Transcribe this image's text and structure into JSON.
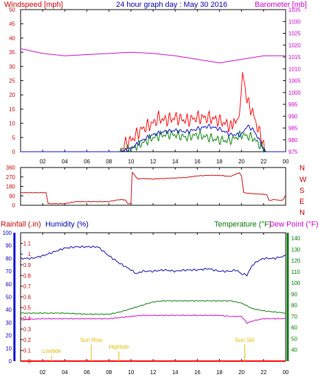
{
  "header": {
    "left_label": "Windspeed [mph]",
    "center_title": "24 hour graph day : May 30 2016",
    "right_label": "Barometer [mb]"
  },
  "legend2": {
    "rainfall_label": "Rainfall (.in)",
    "humidity_label": "Humidity (%)",
    "temperature_label": "Temperature (°F)",
    "dewpoint_label": "Dew Point (°F)"
  },
  "colors": {
    "wind": "#ff0000",
    "wind_avg": "#008000",
    "wind_blue": "#0000cc",
    "barometer": "#cc00cc",
    "direction": "#cc0000",
    "humidity": "#0000aa",
    "temperature": "#007700",
    "dewpoint": "#cc00cc",
    "rainfall": "#ff0000",
    "annotation": "#ddbb00"
  },
  "chart_data": [
    {
      "type": "line",
      "panel": "wind-barometer",
      "x_ticks": [
        "02",
        "04",
        "06",
        "08",
        "10",
        "12",
        "14",
        "16",
        "18",
        "20",
        "22",
        "00"
      ],
      "xlim_hours": [
        0,
        24
      ],
      "left_axis": {
        "label": "Windspeed [mph]",
        "ylim": [
          0,
          50
        ],
        "ticks": [
          "0",
          "5",
          "10",
          "15",
          "20",
          "25",
          "30",
          "35",
          "40",
          "45",
          "50"
        ]
      },
      "right_axis": {
        "label": "Barometer [mb]",
        "ylim": [
          975,
          1035
        ],
        "ticks": [
          "975",
          "980",
          "985",
          "990",
          "995",
          "1000",
          "1005",
          "1010",
          "1015",
          "1020",
          "1025",
          "1030",
          "1035"
        ]
      },
      "series": [
        {
          "key": "gust",
          "axis": "left",
          "color": "#ff0000",
          "points": [
            [
              0,
              0
            ],
            [
              9,
              0
            ],
            [
              9.5,
              3
            ],
            [
              10,
              4
            ],
            [
              10.5,
              6
            ],
            [
              11,
              8
            ],
            [
              12,
              10
            ],
            [
              12.5,
              12
            ],
            [
              13,
              11
            ],
            [
              14,
              12
            ],
            [
              15,
              11
            ],
            [
              16,
              12
            ],
            [
              17,
              12
            ],
            [
              18,
              11
            ],
            [
              19,
              9
            ],
            [
              19.8,
              12
            ],
            [
              20.1,
              28
            ],
            [
              20.5,
              18
            ],
            [
              21,
              14
            ],
            [
              21.5,
              8
            ],
            [
              22,
              3
            ],
            [
              22.2,
              0
            ],
            [
              24,
              0
            ]
          ]
        },
        {
          "key": "average",
          "axis": "left",
          "color": "#008000",
          "points": [
            [
              0,
              0
            ],
            [
              9,
              0
            ],
            [
              10,
              1
            ],
            [
              11,
              3
            ],
            [
              12,
              5
            ],
            [
              13,
              6
            ],
            [
              14,
              6
            ],
            [
              15,
              5
            ],
            [
              16,
              6
            ],
            [
              17,
              5
            ],
            [
              18,
              4
            ],
            [
              19,
              4
            ],
            [
              20,
              6
            ],
            [
              21,
              5
            ],
            [
              22,
              1
            ],
            [
              22.2,
              0
            ],
            [
              24,
              0
            ]
          ]
        },
        {
          "key": "mean",
          "axis": "left",
          "color": "#0000cc",
          "points": [
            [
              0,
              0
            ],
            [
              9,
              0
            ],
            [
              10,
              1
            ],
            [
              11,
              4
            ],
            [
              12,
              6
            ],
            [
              13,
              7
            ],
            [
              14,
              7.5
            ],
            [
              15,
              7
            ],
            [
              16,
              8
            ],
            [
              17,
              9
            ],
            [
              18,
              8
            ],
            [
              19,
              6
            ],
            [
              20,
              6
            ],
            [
              20.5,
              9
            ],
            [
              21,
              8
            ],
            [
              21.5,
              5
            ],
            [
              22,
              1
            ],
            [
              22.2,
              0
            ],
            [
              24,
              0
            ]
          ]
        },
        {
          "key": "barometer",
          "axis": "right",
          "color": "#cc00cc",
          "points": [
            [
              0,
              1018.5
            ],
            [
              2,
              1016.5
            ],
            [
              4,
              1015.5
            ],
            [
              6,
              1016
            ],
            [
              8,
              1016.5
            ],
            [
              10,
              1017
            ],
            [
              12,
              1016.5
            ],
            [
              14,
              1015.5
            ],
            [
              16,
              1014
            ],
            [
              18,
              1012.5
            ],
            [
              20,
              1014
            ],
            [
              22,
              1015.5
            ],
            [
              24,
              1015.5
            ]
          ]
        }
      ]
    },
    {
      "type": "line",
      "panel": "wind-direction",
      "xlim_hours": [
        0,
        24
      ],
      "left_axis": {
        "ylim": [
          0,
          360
        ],
        "ticks": [
          "0",
          "90",
          "180",
          "270",
          "360"
        ]
      },
      "right_labels": [
        "N",
        "W",
        "S",
        "E",
        "N"
      ],
      "series": [
        {
          "key": "direction_deg",
          "color": "#cc0000",
          "points": [
            [
              0,
              120
            ],
            [
              2.3,
              120
            ],
            [
              2.5,
              15
            ],
            [
              4,
              15
            ],
            [
              5,
              35
            ],
            [
              8,
              35
            ],
            [
              9,
              55
            ],
            [
              9.5,
              50
            ],
            [
              9.7,
              15
            ],
            [
              10,
              20
            ],
            [
              10.1,
              315
            ],
            [
              10.3,
              290
            ],
            [
              10.6,
              250
            ],
            [
              11,
              255
            ],
            [
              12,
              250
            ],
            [
              13,
              255
            ],
            [
              14,
              260
            ],
            [
              15,
              265
            ],
            [
              16,
              280
            ],
            [
              17,
              285
            ],
            [
              18,
              285
            ],
            [
              19,
              275
            ],
            [
              19.8,
              310
            ],
            [
              20,
              280
            ],
            [
              20.2,
              120
            ],
            [
              21,
              110
            ],
            [
              22,
              105
            ],
            [
              22.3,
              100
            ],
            [
              22.5,
              45
            ],
            [
              23,
              55
            ],
            [
              23.7,
              45
            ],
            [
              24,
              95
            ]
          ]
        }
      ]
    },
    {
      "type": "line",
      "panel": "humidity-temperature",
      "xlim_hours": [
        0,
        24
      ],
      "left_axis": {
        "label": "Rainfall (.in)",
        "ylim": [
          0,
          1.2
        ],
        "ticks": [
          "0",
          "0.1",
          "0.2",
          "0.3",
          "0.4",
          "0.5",
          "0.6",
          "0.7",
          "0.8",
          "0.9",
          "1",
          "1.1"
        ]
      },
      "left_axis_humidity": {
        "label": "Humidity (%)",
        "ylim": [
          0,
          100
        ],
        "ticks": [
          "0",
          "10",
          "20",
          "30",
          "40",
          "50",
          "60",
          "70",
          "80",
          "90",
          "100"
        ]
      },
      "right_axis": {
        "label": "Temperature (°F)",
        "ylim": [
          30,
          145
        ],
        "ticks": [
          "40",
          "50",
          "60",
          "70",
          "80",
          "90",
          "100",
          "110",
          "120",
          "130",
          "140"
        ]
      },
      "series": [
        {
          "key": "humidity",
          "axis": "humidity",
          "color": "#0000aa",
          "points": [
            [
              0,
              80
            ],
            [
              1,
              80
            ],
            [
              2,
              82
            ],
            [
              3,
              85
            ],
            [
              4,
              88
            ],
            [
              5,
              89
            ],
            [
              6,
              89
            ],
            [
              7,
              89
            ],
            [
              8,
              82
            ],
            [
              9,
              76
            ],
            [
              10,
              71
            ],
            [
              10.5,
              68
            ],
            [
              11,
              70
            ],
            [
              12,
              70
            ],
            [
              13,
              71
            ],
            [
              14,
              70
            ],
            [
              15,
              71
            ],
            [
              16,
              71
            ],
            [
              17,
              72
            ],
            [
              18,
              70
            ],
            [
              19,
              70
            ],
            [
              19.5,
              71
            ],
            [
              20,
              68
            ],
            [
              20.5,
              67
            ],
            [
              21,
              75
            ],
            [
              21.5,
              78
            ],
            [
              22,
              80
            ],
            [
              23,
              80
            ],
            [
              24,
              82
            ]
          ]
        },
        {
          "key": "temperature",
          "axis": "temperature",
          "color": "#007700",
          "points": [
            [
              0,
              73
            ],
            [
              2,
              73
            ],
            [
              4,
              73
            ],
            [
              6,
              72
            ],
            [
              8,
              72
            ],
            [
              9,
              74
            ],
            [
              10,
              77
            ],
            [
              11,
              80
            ],
            [
              12,
              83
            ],
            [
              13,
              84
            ],
            [
              14,
              84
            ],
            [
              15,
              84
            ],
            [
              16,
              84
            ],
            [
              17,
              84
            ],
            [
              18,
              84
            ],
            [
              19,
              84
            ],
            [
              20,
              82
            ],
            [
              21,
              77
            ],
            [
              22,
              75
            ],
            [
              23,
              74
            ],
            [
              24,
              73
            ]
          ]
        },
        {
          "key": "dewpoint",
          "axis": "temperature",
          "color": "#cc00cc",
          "points": [
            [
              0,
              67
            ],
            [
              2,
              68
            ],
            [
              4,
              68
            ],
            [
              6,
              68
            ],
            [
              8,
              68
            ],
            [
              9,
              69
            ],
            [
              10,
              70
            ],
            [
              11,
              71
            ],
            [
              12,
              71
            ],
            [
              14,
              71
            ],
            [
              16,
              71
            ],
            [
              18,
              71
            ],
            [
              19,
              70
            ],
            [
              20,
              70
            ],
            [
              20.5,
              64
            ],
            [
              21,
              66
            ],
            [
              22,
              68
            ],
            [
              23,
              68
            ],
            [
              24,
              68
            ]
          ]
        },
        {
          "key": "rainfall",
          "axis": "rainfall",
          "color": "#ff0000",
          "points": [
            [
              0,
              0
            ],
            [
              24,
              0
            ]
          ]
        }
      ],
      "annotations": [
        {
          "label": "Lowtide",
          "hour": 2.8
        },
        {
          "label": "Sun Rise",
          "hour": 6.4
        },
        {
          "label": "Hightide",
          "hour": 8.9
        },
        {
          "label": "Sun Set",
          "hour": 20.3
        }
      ]
    }
  ]
}
